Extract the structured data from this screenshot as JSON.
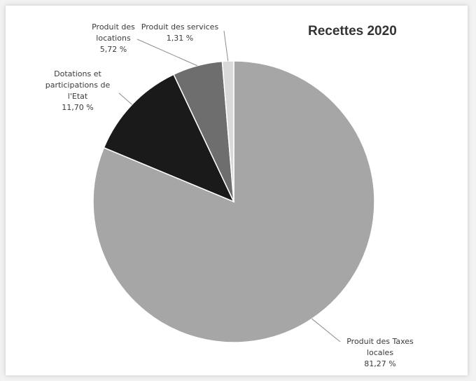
{
  "chart_data": {
    "type": "pie",
    "title": "Recettes 2020",
    "slices": [
      {
        "label_lines": [
          "Produit des Taxes",
          "locales"
        ],
        "value": 81.27,
        "value_text": "81,27 %",
        "color": "#a6a6a6"
      },
      {
        "label_lines": [
          "Dotations et",
          "participations de",
          "l'Etat"
        ],
        "value": 11.7,
        "value_text": "11,70 %",
        "color": "#1a1a1a"
      },
      {
        "label_lines": [
          "Produit des",
          "locations"
        ],
        "value": 5.72,
        "value_text": "5,72 %",
        "color": "#6e6e6e"
      },
      {
        "label_lines": [
          "Produit des services"
        ],
        "value": 1.31,
        "value_text": "1,31 %",
        "color": "#d9d9d9"
      }
    ]
  }
}
